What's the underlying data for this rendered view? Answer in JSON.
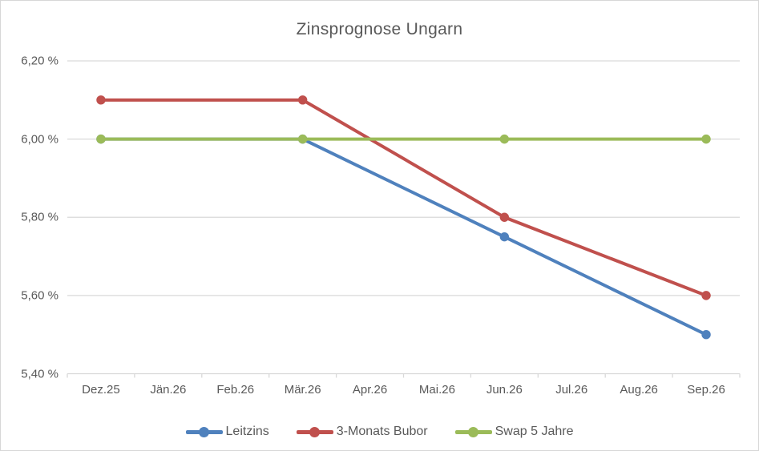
{
  "window": {
    "background": "#FFFFFF",
    "border_color": "#D7D7D7"
  },
  "chart_data": {
    "type": "line",
    "title": "Zinsprognose Ungarn",
    "categories": [
      "Dez.25",
      "Jän.26",
      "Feb.26",
      "Mär.26",
      "Apr.26",
      "Mai.26",
      "Jun.26",
      "Jul.26",
      "Aug.26",
      "Sep.26"
    ],
    "series": [
      {
        "id": "leitzins",
        "name": "Leitzins",
        "color": "#4F81BD",
        "values": [
          6.0,
          null,
          null,
          6.0,
          null,
          null,
          5.75,
          null,
          null,
          5.5
        ]
      },
      {
        "id": "bubor",
        "name": "3-Monats Bubor",
        "color": "#C0504D",
        "values": [
          6.1,
          null,
          null,
          6.1,
          null,
          null,
          5.8,
          null,
          null,
          5.6
        ]
      },
      {
        "id": "swap",
        "name": "Swap 5 Jahre",
        "color": "#9BBB59",
        "values": [
          6.0,
          null,
          null,
          6.0,
          null,
          null,
          6.0,
          null,
          null,
          6.0
        ]
      }
    ],
    "yticks": [
      {
        "label": "6,20 %",
        "value": 6.2
      },
      {
        "label": "6,00 %",
        "value": 6.0
      },
      {
        "label": "5,80 %",
        "value": 5.8
      },
      {
        "label": "5,60 %",
        "value": 5.6
      },
      {
        "label": "5,40 %",
        "value": 5.4
      }
    ],
    "ylim": [
      5.4,
      6.2
    ],
    "grid": "horizontal",
    "legend_position": "bottom",
    "grid_color": "#D9D9D9",
    "axis_color": "#D9D9D9",
    "text_color": "#595959"
  }
}
